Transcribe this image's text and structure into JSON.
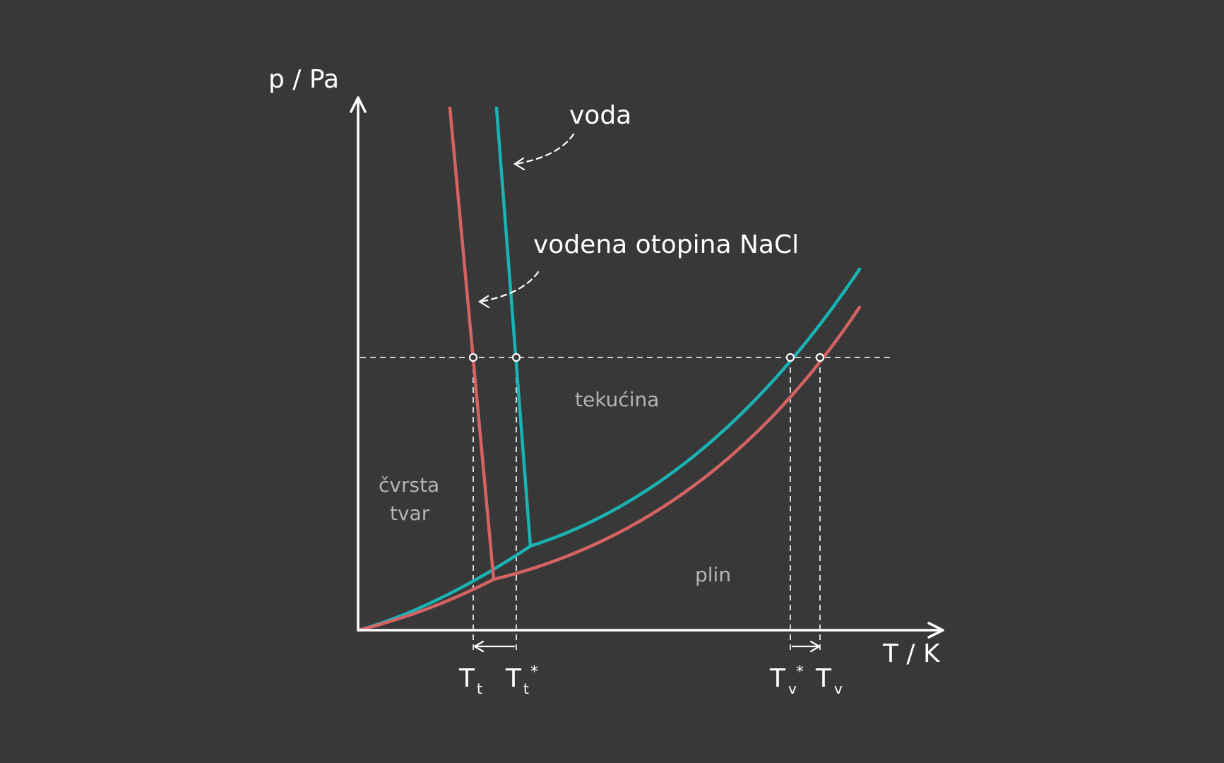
{
  "axes": {
    "y_label": "p / Pa",
    "x_label": "T / K"
  },
  "legend": {
    "water": "voda",
    "solution": "vodena otopina NaCl"
  },
  "regions": {
    "solid_line1": "čvrsta",
    "solid_line2": "tvar",
    "liquid": "tekućina",
    "gas": "plin"
  },
  "ticks": {
    "tt": {
      "main": "T",
      "sub": "t"
    },
    "tt_star": {
      "main": "T",
      "sub": "t",
      "sup": "*"
    },
    "tv_star": {
      "main": "T",
      "sub": "v",
      "sup": "*"
    },
    "tv": {
      "main": "T",
      "sub": "v"
    }
  },
  "colors": {
    "background": "#383838",
    "water": "#1ab3b3",
    "solution": "#d66363",
    "ink": "#ffffff",
    "region_text": "#b4b4b4"
  }
}
